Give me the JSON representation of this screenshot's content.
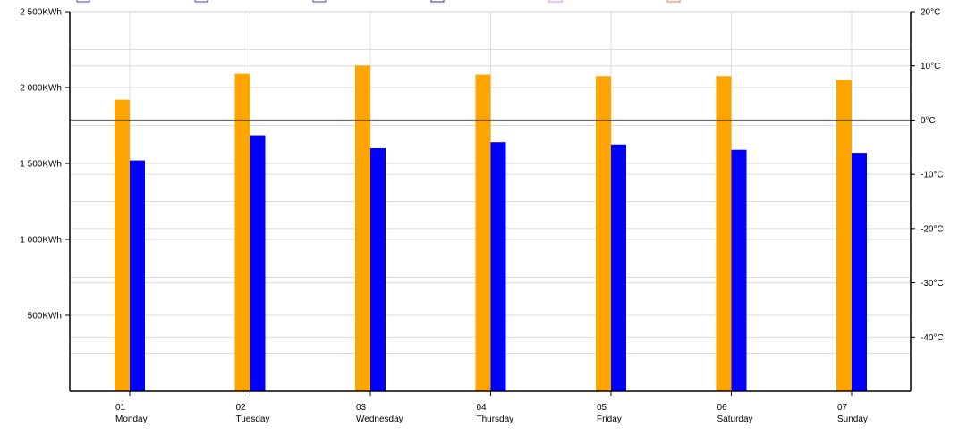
{
  "chart_data": {
    "type": "bar",
    "title": "",
    "xlabel": "",
    "ylabel": "",
    "x_ticks": [
      {
        "num": "01",
        "day": "Monday"
      },
      {
        "num": "02",
        "day": "Tuesday"
      },
      {
        "num": "03",
        "day": "Wednesday"
      },
      {
        "num": "04",
        "day": "Thursday"
      },
      {
        "num": "05",
        "day": "Friday"
      },
      {
        "num": "06",
        "day": "Saturday"
      },
      {
        "num": "07",
        "day": "Sunday"
      }
    ],
    "y_left": {
      "ylim": [
        0,
        2500
      ],
      "ticks": [
        {
          "value": 500,
          "label": "500KWh"
        },
        {
          "value": 1000,
          "label": "1 000KWh"
        },
        {
          "value": 1500,
          "label": "1 500KWh"
        },
        {
          "value": 2000,
          "label": "2 000KWh"
        },
        {
          "value": 2500,
          "label": "2 500KWh"
        }
      ]
    },
    "y_right": {
      "ylim": [
        -50,
        20
      ],
      "ticks": [
        {
          "value": -40,
          "label": "-40°C"
        },
        {
          "value": -30,
          "label": "-30°C"
        },
        {
          "value": -20,
          "label": "-20°C"
        },
        {
          "value": -10,
          "label": "-10°C"
        },
        {
          "value": 0,
          "label": "0°C"
        },
        {
          "value": 10,
          "label": "10°C"
        },
        {
          "value": 20,
          "label": "20°C"
        }
      ]
    },
    "series": [
      {
        "color": "#FFA500",
        "values": [
          1920,
          2090,
          2145,
          2085,
          2075,
          2075,
          2050
        ]
      },
      {
        "color": "#0000FF",
        "values": [
          1520,
          1685,
          1600,
          1640,
          1625,
          1590,
          1570
        ]
      }
    ],
    "legend_markers": [
      {
        "color": "#6A5ACD"
      },
      {
        "color": "#6A5ACD"
      },
      {
        "color": "#6A5ACD"
      },
      {
        "color": "#4B4BD8"
      },
      {
        "color": "#DDA0DD"
      },
      {
        "color": "#FA8072"
      }
    ],
    "grid": true
  }
}
